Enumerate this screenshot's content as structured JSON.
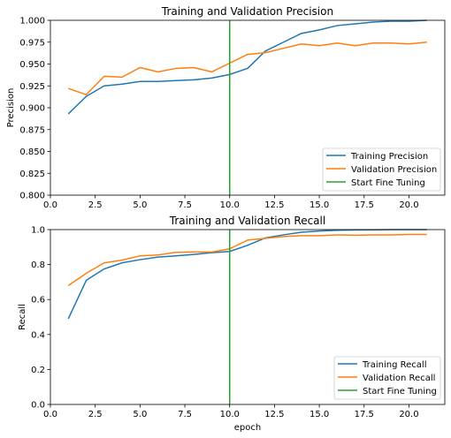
{
  "chart_data": [
    {
      "type": "line",
      "title": "Training and Validation Precision",
      "xlabel": "",
      "ylabel": "Precision",
      "xlim": [
        0,
        22
      ],
      "ylim": [
        0.8,
        1.0
      ],
      "xticks": [
        0,
        2.5,
        5,
        7.5,
        10,
        12.5,
        15,
        17.5,
        20
      ],
      "xtick_labels": [
        "0.0",
        "2.5",
        "5.0",
        "7.5",
        "10.0",
        "12.5",
        "15.0",
        "17.5",
        "20.0"
      ],
      "yticks": [
        0.8,
        0.825,
        0.85,
        0.875,
        0.9,
        0.925,
        0.95,
        0.975,
        1.0
      ],
      "ytick_labels": [
        "0.800",
        "0.825",
        "0.850",
        "0.875",
        "0.900",
        "0.925",
        "0.950",
        "0.975",
        "1.000"
      ],
      "legend_position": "lower-right",
      "series": [
        {
          "name": "Training Precision",
          "color": "#1f77b4",
          "x": [
            1,
            2,
            3,
            4,
            5,
            6,
            7,
            8,
            9,
            10,
            11,
            12,
            13,
            14,
            15,
            16,
            17,
            18,
            19,
            20,
            21
          ],
          "values": [
            0.893,
            0.913,
            0.925,
            0.927,
            0.93,
            0.93,
            0.931,
            0.932,
            0.934,
            0.938,
            0.945,
            0.965,
            0.975,
            0.985,
            0.989,
            0.994,
            0.996,
            0.998,
            0.999,
            0.999,
            1.0
          ]
        },
        {
          "name": "Validation Precision",
          "color": "#ff7f0e",
          "x": [
            1,
            2,
            3,
            4,
            5,
            6,
            7,
            8,
            9,
            10,
            11,
            12,
            13,
            14,
            15,
            16,
            17,
            18,
            19,
            20,
            21
          ],
          "values": [
            0.922,
            0.915,
            0.936,
            0.935,
            0.946,
            0.941,
            0.945,
            0.946,
            0.941,
            0.951,
            0.961,
            0.963,
            0.968,
            0.973,
            0.971,
            0.974,
            0.971,
            0.974,
            0.974,
            0.973,
            0.975
          ]
        },
        {
          "name": "Start Fine Tuning",
          "color": "#2ca02c",
          "x": [
            10,
            10
          ],
          "values": [
            0.8,
            1.0
          ]
        }
      ]
    },
    {
      "type": "line",
      "title": "Training and Validation Recall",
      "xlabel": "epoch",
      "ylabel": "Recall",
      "xlim": [
        0,
        22
      ],
      "ylim": [
        0.0,
        1.0
      ],
      "xticks": [
        0,
        2.5,
        5,
        7.5,
        10,
        12.5,
        15,
        17.5,
        20
      ],
      "xtick_labels": [
        "0.0",
        "2.5",
        "5.0",
        "7.5",
        "10.0",
        "12.5",
        "15.0",
        "17.5",
        "20.0"
      ],
      "yticks": [
        0,
        0.2,
        0.4,
        0.6,
        0.8,
        1.0
      ],
      "ytick_labels": [
        "0.0",
        "0.2",
        "0.4",
        "0.6",
        "0.8",
        "1.0"
      ],
      "legend_position": "lower-right",
      "series": [
        {
          "name": "Training Recall",
          "color": "#1f77b4",
          "x": [
            1,
            2,
            3,
            4,
            5,
            6,
            7,
            8,
            9,
            10,
            11,
            12,
            13,
            14,
            15,
            16,
            17,
            18,
            19,
            20,
            21
          ],
          "values": [
            0.49,
            0.71,
            0.775,
            0.81,
            0.828,
            0.843,
            0.85,
            0.858,
            0.868,
            0.875,
            0.91,
            0.953,
            0.97,
            0.985,
            0.992,
            0.996,
            0.998,
            0.999,
            1.0,
            1.0,
            1.0
          ]
        },
        {
          "name": "Validation Recall",
          "color": "#ff7f0e",
          "x": [
            1,
            2,
            3,
            4,
            5,
            6,
            7,
            8,
            9,
            10,
            11,
            12,
            13,
            14,
            15,
            16,
            17,
            18,
            19,
            20,
            21
          ],
          "values": [
            0.68,
            0.75,
            0.81,
            0.825,
            0.85,
            0.855,
            0.87,
            0.872,
            0.872,
            0.89,
            0.94,
            0.95,
            0.96,
            0.965,
            0.965,
            0.97,
            0.968,
            0.97,
            0.97,
            0.972,
            0.972
          ]
        },
        {
          "name": "Start Fine Tuning",
          "color": "#2ca02c",
          "x": [
            10,
            10
          ],
          "values": [
            0.0,
            1.0
          ]
        }
      ]
    }
  ]
}
